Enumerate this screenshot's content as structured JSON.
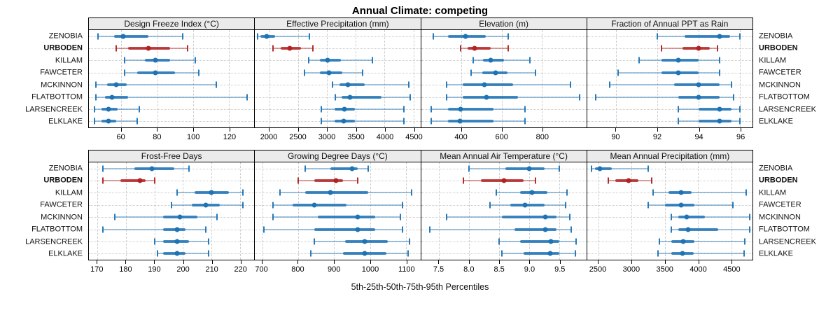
{
  "title": "Annual Climate: competing",
  "caption": "5th-25th-50th-75th-95th Percentiles",
  "colors": {
    "default": "#1E73B4",
    "highlight": "#B22222",
    "strip_bg": "#EBEBEB",
    "grid": "#CDCDCD"
  },
  "sites": [
    {
      "name": "ZENOBIA",
      "highlight": false
    },
    {
      "name": "URBODEN",
      "highlight": true
    },
    {
      "name": "KILLAM",
      "highlight": false
    },
    {
      "name": "FAWCETER",
      "highlight": false
    },
    {
      "name": "MCKINNON",
      "highlight": false
    },
    {
      "name": "FLATBOTTOM",
      "highlight": false
    },
    {
      "name": "LARSENCREEK",
      "highlight": false
    },
    {
      "name": "ELKLAKE",
      "highlight": false
    }
  ],
  "chart_data": {
    "type": "dotplot-percentiles",
    "percentile_labels": [
      "5th",
      "25th",
      "50th",
      "75th",
      "95th"
    ],
    "note": "values per site are [p5, p25, p50, p75, p95] in site order above",
    "panels": [
      {
        "title": "Design Freeze Index (°C)",
        "xlim": [
          42,
          134
        ],
        "ticks": [
          60,
          80,
          100,
          120
        ],
        "tick_labels": [
          "60",
          "80",
          "100",
          "120"
        ],
        "values": [
          [
            47,
            56,
            61,
            75,
            94
          ],
          [
            57,
            64,
            75,
            87,
            97
          ],
          [
            62,
            73,
            79,
            87,
            101
          ],
          [
            62,
            69,
            79,
            90,
            103
          ],
          [
            46,
            52,
            57,
            63,
            113
          ],
          [
            46,
            51,
            55,
            64,
            130
          ],
          [
            45,
            49,
            53,
            58,
            70
          ],
          [
            45,
            49,
            53,
            57,
            69
          ]
        ]
      },
      {
        "title": "Effective Precipitation (mm)",
        "xlim": [
          1750,
          4620
        ],
        "ticks": [
          2000,
          2500,
          3000,
          3500,
          4000,
          4500
        ],
        "tick_labels": [
          "2000",
          "2500",
          "3000",
          "3500",
          "4000",
          "4500"
        ],
        "values": [
          [
            1790,
            1850,
            1950,
            2100,
            2700
          ],
          [
            2060,
            2200,
            2360,
            2550,
            2760
          ],
          [
            2680,
            2880,
            3010,
            3240,
            3790
          ],
          [
            2610,
            2880,
            3040,
            3270,
            3620
          ],
          [
            3100,
            3220,
            3360,
            3650,
            4420
          ],
          [
            3140,
            3250,
            3400,
            3950,
            4440
          ],
          [
            2900,
            3130,
            3300,
            3490,
            4330
          ],
          [
            2900,
            3130,
            3290,
            3480,
            4330
          ]
        ]
      },
      {
        "title": "Elevation (m)",
        "xlim": [
          200,
          1020
        ],
        "ticks": [
          400,
          600,
          800
        ],
        "tick_labels": [
          "400",
          "600",
          "800"
        ],
        "values": [
          [
            260,
            335,
            420,
            520,
            633
          ],
          [
            395,
            430,
            465,
            545,
            633
          ],
          [
            458,
            508,
            545,
            610,
            740
          ],
          [
            447,
            505,
            570,
            628,
            767
          ],
          [
            327,
            405,
            515,
            655,
            940
          ],
          [
            327,
            405,
            525,
            680,
            985
          ],
          [
            250,
            335,
            395,
            560,
            715
          ],
          [
            250,
            335,
            393,
            558,
            717
          ]
        ]
      },
      {
        "title": "Fraction of Annual PPT as Rain",
        "xlim": [
          88.6,
          96.6
        ],
        "ticks": [
          90,
          92,
          94,
          96
        ],
        "tick_labels": [
          "90",
          "92",
          "94",
          "96"
        ],
        "values": [
          [
            92.0,
            93.3,
            95.0,
            95.5,
            96.0
          ],
          [
            92.2,
            93.2,
            94.0,
            94.55,
            94.9
          ],
          [
            91.1,
            92.2,
            93.0,
            94.0,
            95.0
          ],
          [
            90.1,
            92.2,
            93.0,
            94.0,
            95.0
          ],
          [
            89.7,
            92.8,
            94.0,
            95.0,
            95.6
          ],
          [
            89.0,
            93.0,
            94.0,
            95.0,
            95.7
          ],
          [
            93.0,
            94.0,
            95.0,
            95.6,
            96.0
          ],
          [
            93.0,
            94.0,
            95.0,
            95.6,
            96.0
          ]
        ]
      },
      {
        "title": "Frost-Free Days",
        "xlim": [
          167,
          225
        ],
        "ticks": [
          170,
          180,
          190,
          200,
          210,
          220
        ],
        "tick_labels": [
          "170",
          "180",
          "190",
          "200",
          "210",
          "220"
        ],
        "values": [
          [
            172,
            183,
            189,
            197,
            202
          ],
          [
            172,
            178,
            185,
            187,
            190
          ],
          [
            198,
            204,
            210,
            216,
            221
          ],
          [
            196,
            203,
            208,
            213,
            221
          ],
          [
            176,
            193,
            199,
            205,
            212
          ],
          [
            172,
            193,
            198,
            201,
            208
          ],
          [
            190,
            193,
            198,
            202,
            209
          ],
          [
            191,
            193,
            198,
            201,
            209
          ]
        ]
      },
      {
        "title": "Growing Degree Days (°C)",
        "xlim": [
          680,
          1140
        ],
        "ticks": [
          700,
          800,
          900,
          1000,
          1100
        ],
        "tick_labels": [
          "700",
          "800",
          "900",
          "1000",
          "1100"
        ],
        "values": [
          [
            820,
            890,
            950,
            965,
            995
          ],
          [
            800,
            845,
            905,
            925,
            965
          ],
          [
            750,
            820,
            890,
            995,
            1115
          ],
          [
            730,
            785,
            845,
            935,
            1090
          ],
          [
            730,
            855,
            965,
            1015,
            1085
          ],
          [
            705,
            845,
            965,
            1015,
            1090
          ],
          [
            845,
            930,
            985,
            1050,
            1110
          ],
          [
            835,
            925,
            985,
            1045,
            1105
          ]
        ]
      },
      {
        "title": "Mean Annual Air Temperature (°C)",
        "xlim": [
          7.2,
          9.95
        ],
        "ticks": [
          7.5,
          8.0,
          8.5,
          9.0,
          9.5
        ],
        "tick_labels": [
          "7.5",
          "8.0",
          "8.5",
          "9.0",
          "9.5"
        ],
        "values": [
          [
            8.0,
            8.6,
            9.0,
            9.25,
            9.5
          ],
          [
            7.9,
            8.2,
            8.58,
            8.9,
            9.1
          ],
          [
            8.45,
            8.85,
            9.05,
            9.3,
            9.63
          ],
          [
            8.35,
            8.68,
            8.93,
            9.25,
            9.6
          ],
          [
            7.62,
            8.55,
            9.27,
            9.45,
            9.67
          ],
          [
            7.35,
            8.75,
            9.27,
            9.45,
            9.7
          ],
          [
            8.5,
            8.85,
            9.36,
            9.5,
            9.78
          ],
          [
            8.55,
            8.9,
            9.35,
            9.5,
            9.77
          ]
        ]
      },
      {
        "title": "Mean Annual Precipitation (mm)",
        "xlim": [
          2330,
          4820
        ],
        "ticks": [
          2500,
          3000,
          3500,
          4000,
          4500
        ],
        "tick_labels": [
          "2500",
          "3000",
          "3500",
          "4000",
          "4500"
        ],
        "values": [
          [
            2400,
            2450,
            2520,
            2700,
            3250
          ],
          [
            2650,
            2750,
            2950,
            3100,
            3300
          ],
          [
            3320,
            3550,
            3750,
            3900,
            4720
          ],
          [
            3250,
            3500,
            3750,
            3950,
            4520
          ],
          [
            3600,
            3700,
            3830,
            4100,
            4780
          ],
          [
            3600,
            3700,
            3850,
            4300,
            4780
          ],
          [
            3420,
            3600,
            3780,
            3950,
            4700
          ],
          [
            3400,
            3600,
            3770,
            3930,
            4690
          ]
        ]
      }
    ]
  }
}
